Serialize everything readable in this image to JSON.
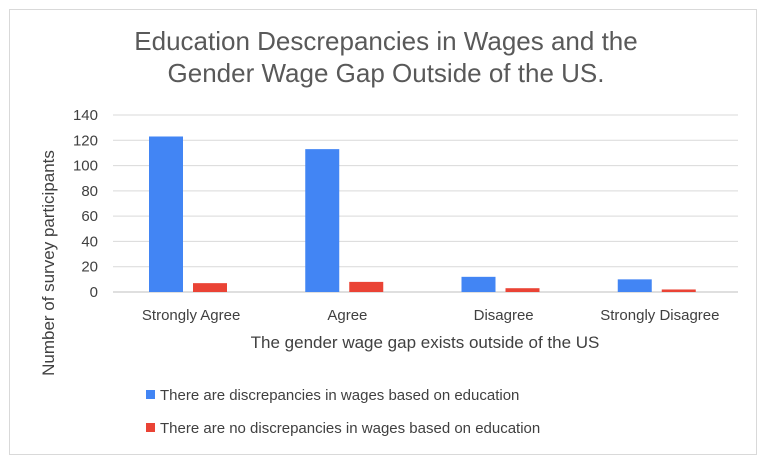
{
  "chart_data": {
    "type": "bar",
    "title_lines": [
      "Education Descrepancies in Wages and the",
      "Gender Wage Gap Outside of the US."
    ],
    "xlabel": "The gender wage gap exists outside of the US",
    "ylabel": "Number of survey participants",
    "categories": [
      "Strongly Agree",
      "Agree",
      "Disagree",
      "Strongly Disagree"
    ],
    "ylim": [
      0,
      140
    ],
    "yticks": [
      0,
      20,
      40,
      60,
      80,
      100,
      120,
      140
    ],
    "grid": true,
    "legend_position": "bottom",
    "series": [
      {
        "name": "There are discrepancies in wages based on education",
        "color": "#4285f4",
        "values": [
          123,
          113,
          12,
          10
        ]
      },
      {
        "name": "There are no discrepancies in wages based on education",
        "color": "#ea4335",
        "values": [
          7,
          8,
          3,
          2
        ]
      }
    ]
  }
}
